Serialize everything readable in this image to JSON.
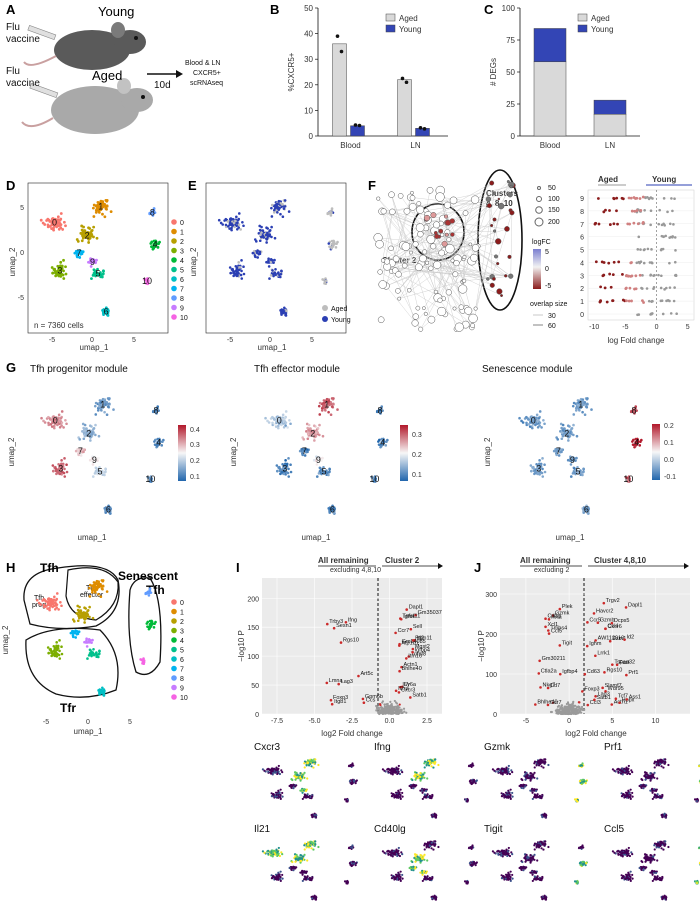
{
  "panel_letters": [
    "A",
    "B",
    "C",
    "D",
    "E",
    "F",
    "G",
    "H",
    "I",
    "J"
  ],
  "panelA": {
    "flu_label_1": "Flu",
    "vaccine_label_1": "vaccine",
    "flu_label_2": "Flu",
    "vaccine_label_2": "vaccine",
    "young_label": "Young",
    "aged_label": "Aged",
    "arrow_label": "10d",
    "assay_line1": "Blood & LN",
    "assay_line2": "CXCR5+",
    "assay_line3": "scRNAseq"
  },
  "panelD": {
    "n_label": "n = 7360 cells",
    "cluster_legend": [
      "0",
      "1",
      "2",
      "3",
      "4",
      "5",
      "6",
      "7",
      "8",
      "9",
      "10"
    ],
    "cluster_colors": [
      "#f8766d",
      "#de8c00",
      "#b79f00",
      "#7cae00",
      "#00ba38",
      "#00c08b",
      "#00bfc4",
      "#00b4f0",
      "#619cff",
      "#c77cff",
      "#f564e3"
    ],
    "xlabel": "umap_1",
    "ylabel": "umap_2"
  },
  "panelE": {
    "legend": [
      "Aged",
      "Young"
    ],
    "colors": [
      "#bdbdbd",
      "#2b3fb3"
    ],
    "xlabel": "umap_1",
    "ylabel": "umap_2"
  },
  "panelF": {
    "cluster2_label": "Cluster 2",
    "clusters_label_1": "Clusters",
    "clusters_label_2": "4, 8, 10",
    "size_legend": [
      "50",
      "100",
      "150",
      "200"
    ],
    "logfc_title": "logFC",
    "logfc_ticks": [
      "5",
      "0",
      "-5"
    ],
    "overlap_title": "overlap size",
    "overlap_ticks": [
      "30",
      "60"
    ],
    "aged_header": "Aged",
    "young_header": "Young",
    "xlabel": "log Fold change",
    "x_ticks": [
      "-10",
      "-5",
      "0",
      "5"
    ],
    "y_ticks": [
      "9",
      "8",
      "7",
      "6",
      "5",
      "4",
      "3",
      "2",
      "1",
      "0"
    ]
  },
  "panelG": {
    "titles": [
      "Tfh progenitor module",
      "Tfh effector module",
      "Senescence module"
    ],
    "scale1": [
      "0.4",
      "0.3",
      "0.2",
      "0.1"
    ],
    "scale2": [
      "0.3",
      "0.2",
      "0.1"
    ],
    "scale3": [
      "0.2",
      "0.1",
      "0.0",
      "-0.1"
    ],
    "xlabel": "umap_1",
    "ylabel": "umap_2"
  },
  "panelH": {
    "tfh_label": "Tfh",
    "senescent_line1": "Senescent",
    "senescent_line2": "Tfh",
    "tfr_label": "Tfr",
    "tfh_prog_line1": "Tfh",
    "tfh_prog_line2": "prog.",
    "tfh_eff_line1": "Tfh",
    "tfh_eff_line2": "effector",
    "xlabel": "umap_1",
    "ylabel": "umap_2"
  },
  "panelI": {
    "left_header": "All remaining",
    "left_sub": "excluding 4,8,10",
    "right_header": "Cluster 2",
    "xlabel": "log2 Fold change",
    "ylabel": "−log10 P",
    "x_ticks": [
      "-7.5",
      "-5.0",
      "-2.5",
      "0.0",
      "2.5"
    ],
    "y_ticks": [
      "0",
      "50",
      "100",
      "150",
      "200"
    ],
    "genes": [
      "Itgb1",
      "Il7r",
      "Ly6a",
      "Gpm6b",
      "Cxcr3",
      "Satb1",
      "Rgs10",
      "Sell",
      "Ighm",
      "Sesn1",
      "Id2",
      "Tnfsf8",
      "Foxp3",
      "Dapl1",
      "Actn1",
      "Art5c",
      "Ccr7",
      "Gm35037",
      "Ifng",
      "Gm14085",
      "Atp1b1",
      "Ccs",
      "Mgst2",
      "Ptpn11",
      "Lmna",
      "Igfbp4",
      "Il2ra",
      "Trbv3",
      "Tnfsf11",
      "Bhlhe40",
      "Lag3",
      "Itm10"
    ],
    "features": [
      "Cxcr3",
      "Ifng",
      "Il21",
      "Cd40lg"
    ]
  },
  "panelJ": {
    "left_header": "All remaining",
    "left_sub": "excluding 2",
    "right_header": "Cluster 4,8,10",
    "xlabel": "log2 Fold change",
    "ylabel": "−log10 P",
    "x_ticks": [
      "-5",
      "0",
      "5",
      "10"
    ],
    "y_ticks": [
      "0",
      "100",
      "200",
      "300"
    ],
    "genes": [
      "Ccr7",
      "Rgs10",
      "Esm1",
      "Nkg7",
      "Ccr5",
      "Gzmb",
      "Ccl5",
      "Ccl4",
      "AW112010",
      "Ctla2a",
      "Prf1",
      "Ccl3",
      "Gzmk",
      "Fasl",
      "Cd63",
      "Tmbs4",
      "Cxcr6",
      "Id2",
      "Plek",
      "Actn1",
      "Tcf7",
      "Bhlhe40",
      "Slamf7",
      "Ighm",
      "Tigit",
      "Hopx",
      "Tspan32",
      "Cd7",
      "Lag3",
      "Ass1",
      "Il6ra",
      "Dcps5",
      "Lrrk1",
      "Gm30211",
      "Satb1",
      "Dapl1",
      "Igfbp4",
      "Foxp3",
      "Trgv2",
      "Xcl1",
      "Havcr2",
      "Wdr95",
      "Cd3g"
    ],
    "features": [
      "Gzmk",
      "Prf1",
      "Tigit",
      "Ccl5"
    ]
  },
  "chart_data": [
    {
      "type": "bar",
      "panel": "B",
      "categories": [
        "Blood",
        "LN"
      ],
      "series": [
        {
          "name": "Aged",
          "values": [
            36,
            22
          ],
          "points": [
            [
              39,
              33
            ],
            [
              22.5,
              21
            ]
          ]
        },
        {
          "name": "Young",
          "values": [
            4,
            3
          ],
          "points": [
            [
              4.3,
              4.1
            ],
            [
              3.2,
              2.8
            ]
          ]
        }
      ],
      "ylabel": "%CXCR5+",
      "ylim": [
        0,
        50
      ],
      "y_ticks": [
        0,
        10,
        20,
        30,
        40,
        50
      ],
      "colors": {
        "Aged": "#d9d9d9",
        "Young": "#3345b5"
      },
      "legend": "top-right"
    },
    {
      "type": "bar",
      "panel": "C",
      "stacked": true,
      "categories": [
        "Blood",
        "LN"
      ],
      "series": [
        {
          "name": "Aged",
          "values": [
            58,
            17
          ]
        },
        {
          "name": "Young",
          "values": [
            26,
            11
          ]
        }
      ],
      "ylabel": "# DEGs",
      "ylim": [
        0,
        100
      ],
      "y_ticks": [
        0,
        25,
        50,
        75,
        100
      ],
      "colors": {
        "Aged": "#d9d9d9",
        "Young": "#3345b5"
      },
      "legend": "top-right"
    }
  ]
}
